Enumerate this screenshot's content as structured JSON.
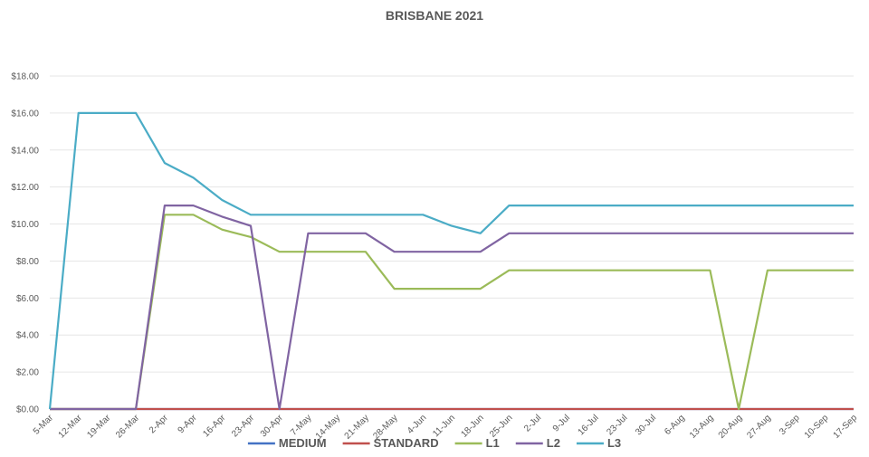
{
  "chart_data": {
    "type": "line",
    "title": "BRISBANE 2021",
    "xlabel": "",
    "ylabel": "",
    "ylim": [
      0,
      18
    ],
    "y_ticks": [
      "$0.00",
      "$2.00",
      "$4.00",
      "$6.00",
      "$8.00",
      "$10.00",
      "$12.00",
      "$14.00",
      "$16.00",
      "$18.00"
    ],
    "grid": true,
    "legend_position": "bottom",
    "categories": [
      "5-Mar",
      "12-Mar",
      "19-Mar",
      "26-Mar",
      "2-Apr",
      "9-Apr",
      "16-Apr",
      "23-Apr",
      "30-Apr",
      "7-May",
      "14-May",
      "21-May",
      "28-May",
      "4-Jun",
      "11-Jun",
      "18-Jun",
      "25-Jun",
      "2-Jul",
      "9-Jul",
      "16-Jul",
      "23-Jul",
      "30-Jul",
      "6-Aug",
      "13-Aug",
      "20-Aug",
      "27-Aug",
      "3-Sep",
      "10-Sep",
      "17-Sep"
    ],
    "series": [
      {
        "name": "MEDIUM",
        "color": "#4472C4",
        "values": [
          0,
          0,
          0,
          0,
          0,
          0,
          0,
          0,
          0,
          0,
          0,
          0,
          0,
          0,
          0,
          0,
          0,
          0,
          0,
          0,
          0,
          0,
          0,
          0,
          0,
          0,
          0,
          0,
          0
        ]
      },
      {
        "name": "STANDARD",
        "color": "#C0504D",
        "values": [
          0,
          0,
          0,
          0,
          0,
          0,
          0,
          0,
          0,
          0,
          0,
          0,
          0,
          0,
          0,
          0,
          0,
          0,
          0,
          0,
          0,
          0,
          0,
          0,
          0,
          0,
          0,
          0,
          0
        ]
      },
      {
        "name": "L1",
        "color": "#9BBB59",
        "values": [
          0,
          0,
          0,
          0,
          10.5,
          10.5,
          9.7,
          9.3,
          8.5,
          8.5,
          8.5,
          8.5,
          6.5,
          6.5,
          6.5,
          6.5,
          7.5,
          7.5,
          7.5,
          7.5,
          7.5,
          7.5,
          7.5,
          7.5,
          0,
          7.5,
          7.5,
          7.5,
          7.5
        ]
      },
      {
        "name": "L2",
        "color": "#8064A2",
        "values": [
          0,
          0,
          0,
          0,
          11,
          11,
          10.4,
          9.9,
          0,
          9.5,
          9.5,
          9.5,
          8.5,
          8.5,
          8.5,
          8.5,
          9.5,
          9.5,
          9.5,
          9.5,
          9.5,
          9.5,
          9.5,
          9.5,
          9.5,
          9.5,
          9.5,
          9.5,
          9.5
        ]
      },
      {
        "name": "L3",
        "color": "#4BACC6",
        "values": [
          0,
          16,
          16,
          16,
          13.3,
          12.5,
          11.3,
          10.5,
          10.5,
          10.5,
          10.5,
          10.5,
          10.5,
          10.5,
          9.9,
          9.5,
          11,
          11,
          11,
          11,
          11,
          11,
          11,
          11,
          11,
          11,
          11,
          11,
          11
        ]
      }
    ]
  }
}
